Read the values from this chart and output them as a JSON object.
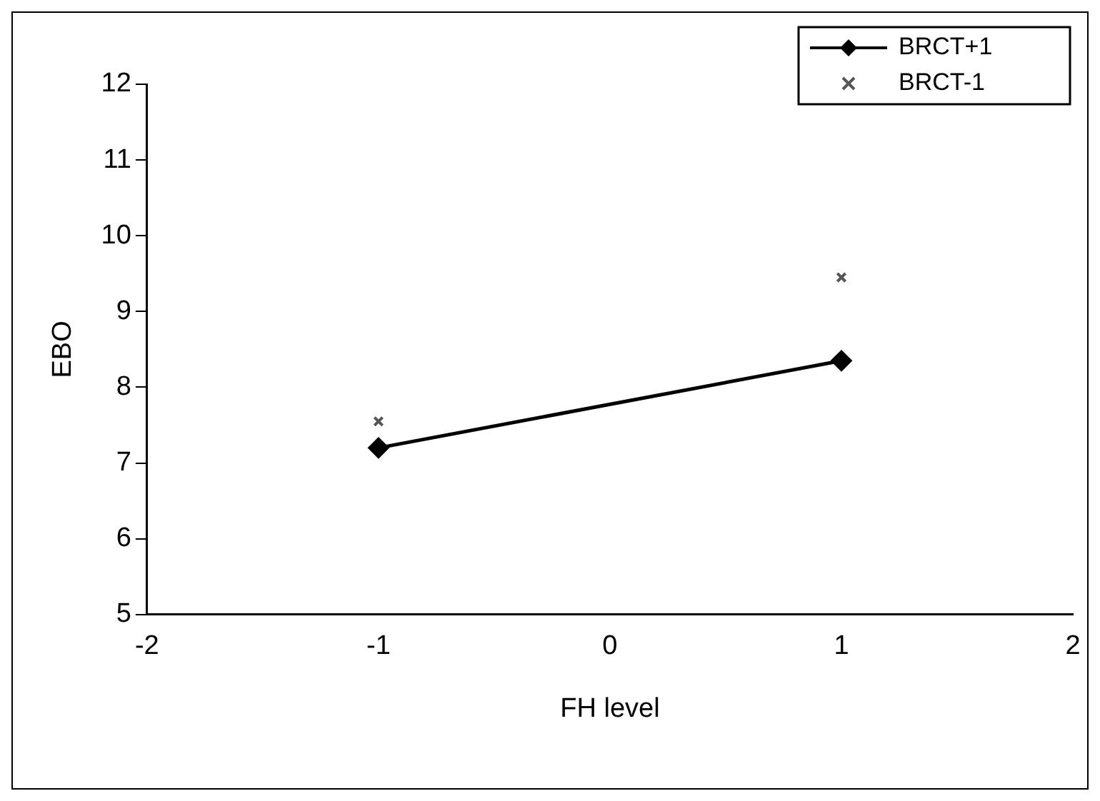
{
  "chart_data": {
    "type": "line",
    "xlabel": "FH level",
    "ylabel": "EBO",
    "x": [
      -1,
      1
    ],
    "xlim": [
      -2,
      2
    ],
    "xticks": [
      -2,
      0,
      2,
      -1,
      1
    ],
    "ylim": [
      5,
      12
    ],
    "yticks": [
      5,
      6,
      7,
      8,
      9,
      10,
      11,
      12
    ],
    "grid": false,
    "legend": "top right",
    "series": [
      {
        "name": "BRCT+1",
        "marker": "diamond",
        "color": "#000000",
        "values": [
          7.2,
          8.35
        ]
      },
      {
        "name": "BRCT-1",
        "type": "scatter",
        "marker": "cross",
        "color": "#555555",
        "values": [
          7.55,
          9.45
        ]
      }
    ]
  }
}
